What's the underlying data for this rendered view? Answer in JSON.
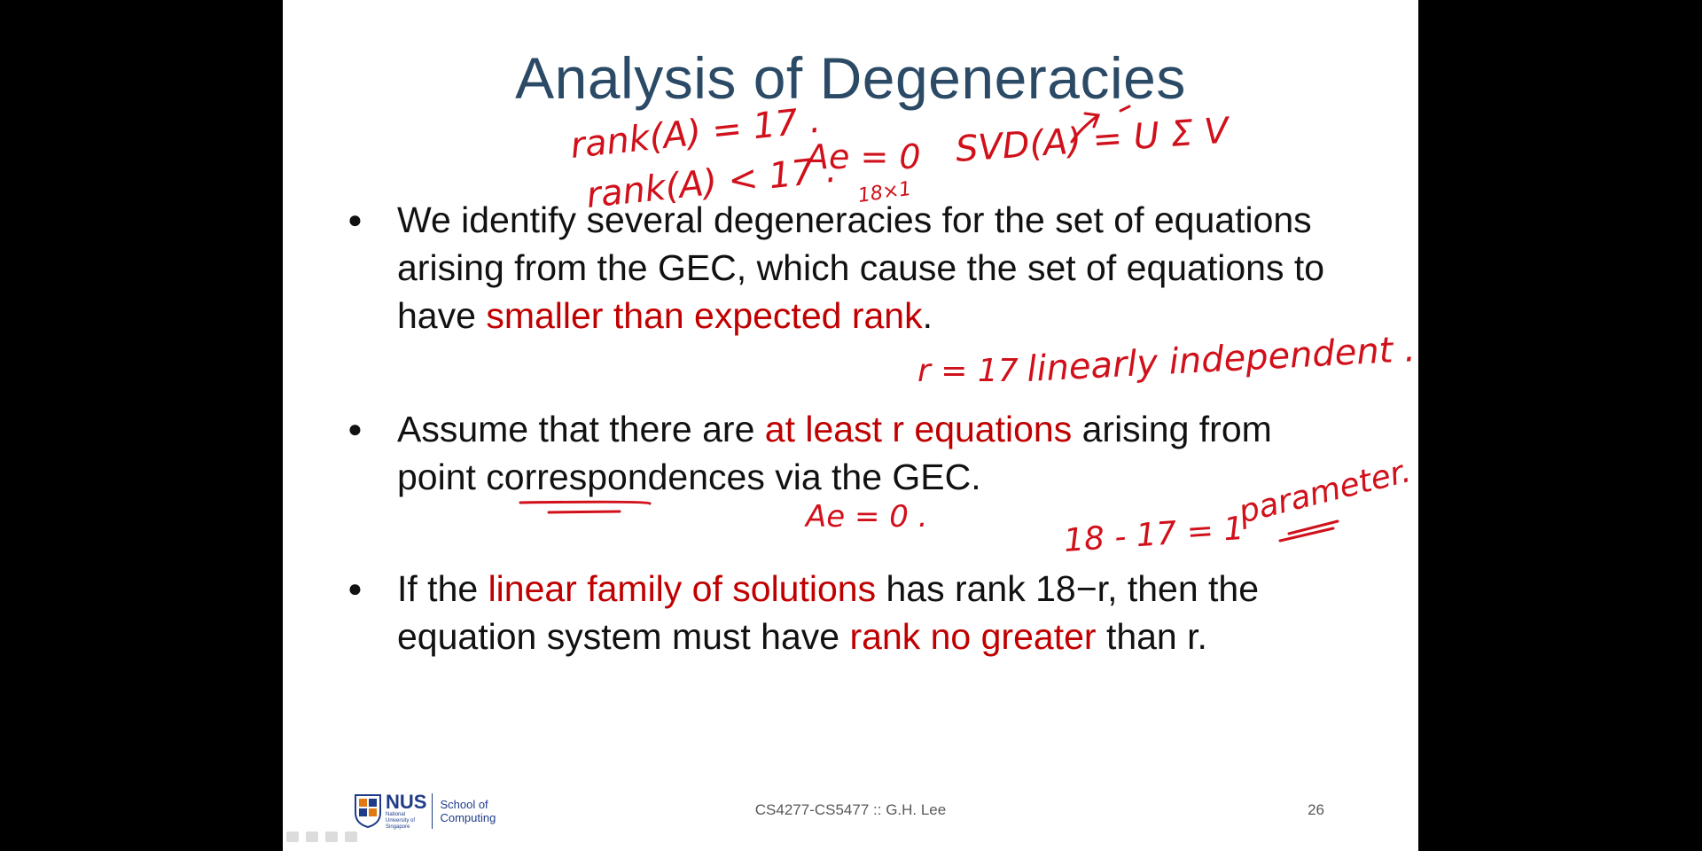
{
  "slide": {
    "title": "Analysis of Degeneracies",
    "bullets": [
      {
        "parts": [
          {
            "text": "We identify several degeneracies for the set of equations arising from the GEC, which cause the set of equations to have ",
            "red": false
          },
          {
            "text": "smaller than expected rank",
            "red": true
          },
          {
            "text": ".",
            "red": false
          }
        ]
      },
      {
        "parts": [
          {
            "text": "Assume that there are ",
            "red": false
          },
          {
            "text": "at least r equations",
            "red": true
          },
          {
            "text": " arising from point correspondences via the GEC.",
            "red": false
          }
        ]
      },
      {
        "parts": [
          {
            "text": "If the ",
            "red": false
          },
          {
            "text": "linear family of solutions",
            "red": true
          },
          {
            "text": " has rank 18−r, then the equation system must have ",
            "red": false
          },
          {
            "text": "rank no greater",
            "red": true
          },
          {
            "text": " than r.",
            "red": false
          }
        ]
      }
    ],
    "footer": {
      "course": "CS4277-CS5477 :: G.H. Lee",
      "page_number": "26"
    },
    "logo": {
      "name": "NUS",
      "subtitle": "National University of Singapore",
      "school": "School of Computing"
    },
    "handwriting": {
      "rank_eq": "rank(A) = 17 .",
      "rank_lt": "rank(A) < 17 .",
      "ae0_top": "Ae = 0",
      "dims": "18×1",
      "svd": "SVD(A) = U Σ V",
      "r17": "r = 17",
      "lin_indep": "linearly independent .",
      "ae0_mid": "Ae = 0 .",
      "calc": "18 - 17 = 1",
      "param": "parameter."
    }
  },
  "colors": {
    "title": "#2b4a66",
    "accent_red": "#c00000",
    "ink_red": "#d0101a",
    "background": "#000000"
  }
}
